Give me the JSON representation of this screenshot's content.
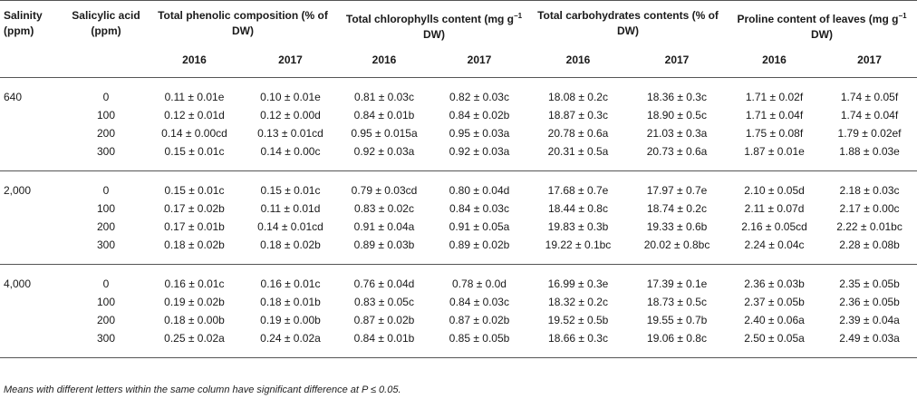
{
  "headers": {
    "salinity": "Salinity (ppm)",
    "salicylic": "Salicylic acid (ppm)",
    "phenolic": "Total phenolic composition (% of DW)",
    "chlorophyll_a": "Total chlorophylls content (mg g",
    "chlorophyll_sup": "−1",
    "chlorophyll_b": " DW)",
    "carbohydrates": "Total carbohydrates contents (% of DW)",
    "proline_a": "Proline content of leaves (mg g",
    "proline_sup": "−1",
    "proline_b": " DW)",
    "years": [
      "2016",
      "2017",
      "2016",
      "2017",
      "2016",
      "2017",
      "2016",
      "2017"
    ]
  },
  "groups": [
    {
      "salinity": "640",
      "rows": [
        {
          "sa": "0",
          "v": [
            "0.11 ± 0.01e",
            "0.10 ± 0.01e",
            "0.81 ± 0.03c",
            "0.82 ± 0.03c",
            "18.08 ± 0.2c",
            "18.36 ± 0.3c",
            "1.71 ± 0.02f",
            "1.74 ± 0.05f"
          ]
        },
        {
          "sa": "100",
          "v": [
            "0.12 ± 0.01d",
            "0.12 ± 0.00d",
            "0.84 ± 0.01b",
            "0.84 ± 0.02b",
            "18.87 ± 0.3c",
            "18.90 ± 0.5c",
            "1.71 ± 0.04f",
            "1.74 ± 0.04f"
          ]
        },
        {
          "sa": "200",
          "v": [
            "0.14 ± 0.00cd",
            "0.13 ± 0.01cd",
            "0.95 ± 0.015a",
            "0.95 ± 0.03a",
            "20.78 ± 0.6a",
            "21.03 ± 0.3a",
            "1.75 ± 0.08f",
            "1.79 ± 0.02ef"
          ]
        },
        {
          "sa": "300",
          "v": [
            "0.15 ± 0.01c",
            "0.14 ± 0.00c",
            "0.92 ± 0.03a",
            "0.92 ± 0.03a",
            "20.31 ± 0.5a",
            "20.73 ± 0.6a",
            "1.87 ± 0.01e",
            "1.88 ± 0.03e"
          ]
        }
      ]
    },
    {
      "salinity": "2,000",
      "rows": [
        {
          "sa": "0",
          "v": [
            "0.15 ± 0.01c",
            "0.15 ± 0.01c",
            "0.79 ± 0.03cd",
            "0.80 ± 0.04d",
            "17.68 ± 0.7e",
            "17.97 ± 0.7e",
            "2.10 ± 0.05d",
            "2.18 ± 0.03c"
          ]
        },
        {
          "sa": "100",
          "v": [
            "0.17 ± 0.02b",
            "0.11 ± 0.01d",
            "0.83 ± 0.02c",
            "0.84 ± 0.03c",
            "18.44 ± 0.8c",
            "18.74 ± 0.2c",
            "2.11 ± 0.07d",
            "2.17 ± 0.00c"
          ]
        },
        {
          "sa": "200",
          "v": [
            "0.17 ± 0.01b",
            "0.14 ± 0.01cd",
            "0.91 ± 0.04a",
            "0.91 ± 0.05a",
            "19.83 ± 0.3b",
            "19.33 ± 0.6b",
            "2.16 ± 0.05cd",
            "2.22 ± 0.01bc"
          ]
        },
        {
          "sa": "300",
          "v": [
            "0.18 ± 0.02b",
            "0.18 ± 0.02b",
            "0.89 ± 0.03b",
            "0.89 ± 0.02b",
            "19.22 ± 0.1bc",
            "20.02 ± 0.8bc",
            "2.24 ± 0.04c",
            "2.28 ± 0.08b"
          ]
        }
      ]
    },
    {
      "salinity": "4,000",
      "rows": [
        {
          "sa": "0",
          "v": [
            "0.16 ± 0.01c",
            "0.16 ± 0.01c",
            "0.76 ± 0.04d",
            "0.78 ± 0.0d",
            "16.99 ± 0.3e",
            "17.39 ± 0.1e",
            "2.36 ± 0.03b",
            "2.35 ± 0.05b"
          ]
        },
        {
          "sa": "100",
          "v": [
            "0.19 ± 0.02b",
            "0.18 ± 0.01b",
            "0.83 ± 0.05c",
            "0.84 ± 0.03c",
            "18.32 ± 0.2c",
            "18.73 ± 0.5c",
            "2.37 ± 0.05b",
            "2.36 ± 0.05b"
          ]
        },
        {
          "sa": "200",
          "v": [
            "0.18 ± 0.00b",
            "0.19 ± 0.00b",
            "0.87 ± 0.02b",
            "0.87 ± 0.02b",
            "19.52 ± 0.5b",
            "19.55 ± 0.7b",
            "2.40 ± 0.06a",
            "2.39 ± 0.04a"
          ]
        },
        {
          "sa": "300",
          "v": [
            "0.25 ± 0.02a",
            "0.24 ± 0.02a",
            "0.84 ± 0.01b",
            "0.85 ± 0.05b",
            "18.66 ± 0.3c",
            "19.06 ± 0.8c",
            "2.50 ± 0.05a",
            "2.49 ± 0.03a"
          ]
        }
      ]
    }
  ],
  "footnote": "Means with different letters within the same column have significant difference at P ≤ 0.05."
}
